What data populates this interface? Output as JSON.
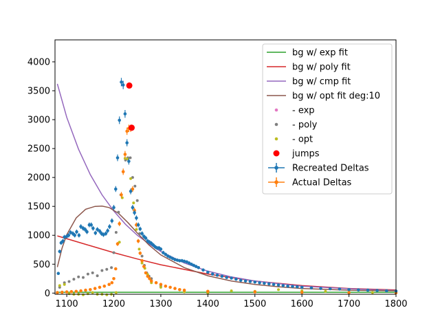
{
  "chart_data": {
    "type": "scatter",
    "title": "",
    "xlabel": "",
    "ylabel": "",
    "xlim": [
      1075,
      1800
    ],
    "ylim": [
      -20,
      4380
    ],
    "x_ticks": [
      1100,
      1200,
      1300,
      1400,
      1500,
      1600,
      1700,
      1800
    ],
    "y_ticks": [
      0,
      500,
      1000,
      1500,
      2000,
      2500,
      3000,
      3500,
      4000
    ],
    "grid": false,
    "legend_position": "top-right",
    "colors": {
      "exp": "#2ca02c",
      "poly": "#d62728",
      "cmp": "#9467bd",
      "opt": "#8c564b",
      "exp_points": "#e377c2",
      "poly_points": "#7f7f7f",
      "opt_points": "#bcbd22",
      "jumps": "#ff0000",
      "recreated": "#1f77b4",
      "actual": "#ff7f0e"
    },
    "legend": [
      {
        "label": "bg w/ exp fit",
        "kind": "line",
        "color": "#2ca02c"
      },
      {
        "label": "bg w/ poly fit",
        "kind": "line",
        "color": "#d62728"
      },
      {
        "label": "bg w/ cmp fit",
        "kind": "line",
        "color": "#9467bd"
      },
      {
        "label": "bg w/ opt fit deg:10",
        "kind": "line",
        "color": "#8c564b"
      },
      {
        "label": "- exp",
        "kind": "dot",
        "color": "#e377c2"
      },
      {
        "label": "- poly",
        "kind": "dot",
        "color": "#7f7f7f"
      },
      {
        "label": "- opt",
        "kind": "dot",
        "color": "#bcbd22"
      },
      {
        "label": "jumps",
        "kind": "bigdot",
        "color": "#ff0000"
      },
      {
        "label": "Recreated Deltas",
        "kind": "errorbar",
        "color": "#1f77b4"
      },
      {
        "label": "Actual Deltas",
        "kind": "errorbar",
        "color": "#ff7f0e"
      }
    ],
    "lines": [
      {
        "name": "bg w/ exp fit",
        "x": [
          1080,
          1800
        ],
        "y": [
          15,
          15
        ]
      },
      {
        "name": "bg w/ poly fit",
        "x": [
          1080,
          1150,
          1200,
          1250,
          1300,
          1400,
          1500,
          1600,
          1700,
          1800
        ],
        "y": [
          990,
          820,
          700,
          590,
          490,
          330,
          210,
          130,
          80,
          55
        ]
      },
      {
        "name": "bg w/ cmp fit",
        "x": [
          1080,
          1100,
          1125,
          1150,
          1175,
          1200,
          1225,
          1250,
          1275,
          1300,
          1350,
          1400,
          1450,
          1500,
          1600,
          1700,
          1800
        ],
        "y": [
          3620,
          3040,
          2490,
          2050,
          1700,
          1420,
          1190,
          1000,
          850,
          720,
          520,
          380,
          280,
          210,
          120,
          75,
          45
        ]
      },
      {
        "name": "bg w/ opt fit deg:10",
        "x": [
          1080,
          1090,
          1100,
          1120,
          1140,
          1160,
          1175,
          1190,
          1210,
          1230,
          1250,
          1275,
          1300,
          1350,
          1400,
          1450,
          1500,
          1550,
          1600,
          1700,
          1800
        ],
        "y": [
          450,
          780,
          1010,
          1300,
          1450,
          1500,
          1505,
          1480,
          1380,
          1220,
          1040,
          830,
          660,
          440,
          300,
          210,
          150,
          110,
          80,
          50,
          40
        ]
      }
    ],
    "series": [
      {
        "name": "Recreated Deltas",
        "x": [
          1082,
          1085,
          1088,
          1092,
          1095,
          1100,
          1104,
          1108,
          1113,
          1117,
          1121,
          1126,
          1130,
          1135,
          1139,
          1143,
          1148,
          1152,
          1156,
          1161,
          1165,
          1170,
          1174,
          1178,
          1183,
          1187,
          1191,
          1196,
          1200,
          1204,
          1208,
          1212,
          1216,
          1220,
          1224,
          1228,
          1232,
          1236,
          1240,
          1244,
          1248,
          1252,
          1256,
          1260,
          1264,
          1268,
          1272,
          1276,
          1280,
          1284,
          1288,
          1292,
          1296,
          1300,
          1305,
          1310,
          1315,
          1320,
          1325,
          1330,
          1335,
          1340,
          1345,
          1350,
          1355,
          1360,
          1365,
          1370,
          1375,
          1380,
          1390,
          1400,
          1410,
          1420,
          1430,
          1440,
          1450,
          1460,
          1470,
          1480,
          1490,
          1500,
          1510,
          1520,
          1530,
          1540,
          1550,
          1560,
          1570,
          1580,
          1590,
          1600,
          1620,
          1640,
          1660,
          1680,
          1700,
          1720,
          1740,
          1760,
          1780,
          1800
        ],
        "y": [
          340,
          720,
          870,
          900,
          970,
          980,
          1000,
          1050,
          1030,
          1000,
          1060,
          1000,
          1150,
          1120,
          1100,
          1060,
          1180,
          1180,
          1120,
          1040,
          1100,
          1070,
          1030,
          1010,
          1030,
          1080,
          1150,
          1250,
          1480,
          1800,
          2340,
          2990,
          3650,
          3600,
          3100,
          2600,
          2280,
          1760,
          1480,
          1390,
          1300,
          1180,
          1110,
          1030,
          980,
          950,
          900,
          880,
          860,
          830,
          800,
          780,
          780,
          760,
          700,
          670,
          640,
          620,
          600,
          580,
          570,
          560,
          560,
          550,
          540,
          520,
          500,
          480,
          460,
          440,
          400,
          360,
          330,
          310,
          290,
          270,
          260,
          240,
          220,
          210,
          200,
          190,
          180,
          170,
          160,
          150,
          140,
          130,
          120,
          115,
          110,
          100,
          90,
          80,
          75,
          70,
          60,
          55,
          50,
          45,
          40,
          35
        ]
      },
      {
        "name": "Actual Deltas",
        "x": [
          1080,
          1090,
          1100,
          1110,
          1120,
          1130,
          1140,
          1150,
          1160,
          1170,
          1180,
          1190,
          1196,
          1200,
          1204,
          1208,
          1212,
          1216,
          1220,
          1224,
          1228,
          1232,
          1236,
          1240,
          1244,
          1248,
          1252,
          1256,
          1260,
          1264,
          1268,
          1272,
          1276,
          1280,
          1290,
          1300,
          1310,
          1320,
          1330,
          1340,
          1350,
          1400,
          1500,
          1600,
          1700,
          1800
        ],
        "y": [
          10,
          15,
          20,
          25,
          30,
          40,
          50,
          60,
          80,
          100,
          120,
          150,
          180,
          250,
          420,
          850,
          1200,
          1700,
          2100,
          2400,
          2800,
          2850,
          2850,
          1800,
          1430,
          1180,
          900,
          690,
          560,
          460,
          350,
          290,
          250,
          210,
          180,
          150,
          120,
          100,
          80,
          60,
          50,
          30,
          20,
          15,
          10,
          5
        ]
      },
      {
        "name": "- poly",
        "x": [
          1085,
          1095,
          1105,
          1115,
          1125,
          1135,
          1145,
          1155,
          1165,
          1175,
          1185,
          1195,
          1200,
          1205,
          1210,
          1215,
          1220,
          1225,
          1230,
          1235,
          1240,
          1245,
          1250,
          1255,
          1260,
          1265,
          1270,
          1275,
          1280,
          1290,
          1300
        ],
        "y": [
          100,
          180,
          200,
          240,
          280,
          270,
          330,
          350,
          300,
          390,
          410,
          440,
          700,
          1050,
          1400,
          1700,
          2100,
          2300,
          2340,
          2340,
          2000,
          1850,
          1600,
          1030,
          640,
          480,
          350,
          290,
          250,
          180,
          120
        ]
      },
      {
        "name": "- opt",
        "x": [
          1085,
          1095,
          1105,
          1115,
          1125,
          1135,
          1145,
          1155,
          1165,
          1175,
          1185,
          1195,
          1205,
          1212,
          1218,
          1224,
          1230,
          1236,
          1242,
          1248,
          1254,
          1260,
          1266,
          1272,
          1280,
          1300,
          1350,
          1400,
          1450,
          1500,
          1550,
          1600,
          1650,
          1700,
          1750,
          1800
        ],
        "y": [
          130,
          150,
          -10,
          -20,
          -20,
          -30,
          -10,
          10,
          -20,
          -20,
          -30,
          -20,
          10,
          880,
          1650,
          2330,
          2320,
          1980,
          1560,
          1100,
          760,
          520,
          430,
          320,
          180,
          100,
          20,
          0,
          40,
          30,
          60,
          40,
          30,
          20,
          10,
          10
        ]
      },
      {
        "name": "jumps",
        "x": [
          1233,
          1238
        ],
        "y": [
          3590,
          2860
        ]
      }
    ]
  }
}
